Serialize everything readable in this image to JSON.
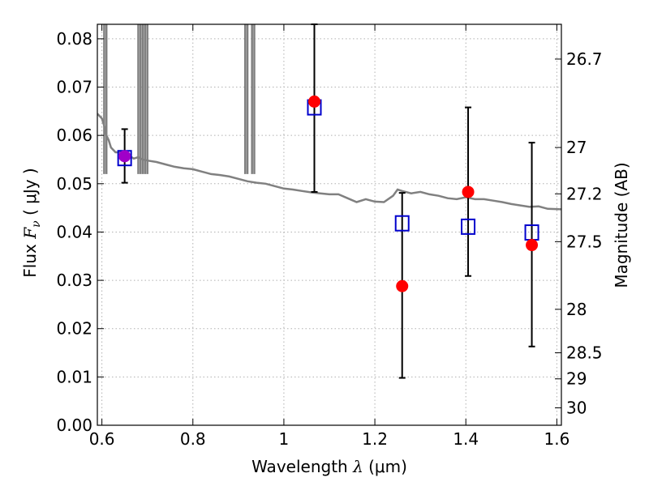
{
  "chart_data": {
    "type": "scatter",
    "xlabel": {
      "prefix": "Wavelength  ",
      "symbol": "λ",
      "suffix": " (μm)"
    },
    "ylabel": {
      "prefix": "Flux  ",
      "symbol": "F",
      "subscript": "ν",
      "suffix": "  ( μJy )"
    },
    "y2label": "Magnitude (AB)",
    "xlim": [
      0.59,
      1.61
    ],
    "ylim": [
      0.0,
      0.083
    ],
    "grid": true,
    "x_ticks": [
      {
        "value": 0.6,
        "label": "0.6"
      },
      {
        "value": 0.8,
        "label": "0.8"
      },
      {
        "value": 1.0,
        "label": "1"
      },
      {
        "value": 1.2,
        "label": "1.2"
      },
      {
        "value": 1.4,
        "label": "1.4"
      },
      {
        "value": 1.6,
        "label": "1.6"
      }
    ],
    "y_ticks": [
      {
        "value": 0.0,
        "label": "0.00"
      },
      {
        "value": 0.01,
        "label": "0.01"
      },
      {
        "value": 0.02,
        "label": "0.02"
      },
      {
        "value": 0.03,
        "label": "0.03"
      },
      {
        "value": 0.04,
        "label": "0.04"
      },
      {
        "value": 0.05,
        "label": "0.05"
      },
      {
        "value": 0.06,
        "label": "0.06"
      },
      {
        "value": 0.07,
        "label": "0.07"
      },
      {
        "value": 0.08,
        "label": "0.08"
      }
    ],
    "y2_ticks": [
      {
        "flux": 0.0758,
        "label": "26.7"
      },
      {
        "flux": 0.0575,
        "label": "27"
      },
      {
        "flux": 0.0479,
        "label": "27.2"
      },
      {
        "flux": 0.038,
        "label": "27.5"
      },
      {
        "flux": 0.024,
        "label": "28"
      },
      {
        "flux": 0.015,
        "label": "28.5"
      },
      {
        "flux": 0.0096,
        "label": "29"
      },
      {
        "flux": 0.0036,
        "label": "30"
      }
    ],
    "colors": {
      "observed": "#ff0000",
      "model_points": "#0000cc",
      "errorbar": "#000000",
      "sed": "#808080",
      "grid": "#b0b0b0"
    },
    "observed_points": [
      {
        "x": 0.65,
        "y": 0.0557,
        "yerr_low": 0.0502,
        "yerr_high": 0.0613
      },
      {
        "x": 1.067,
        "y": 0.067,
        "yerr_low": 0.0483,
        "yerr_high": 0.083
      },
      {
        "x": 1.26,
        "y": 0.0288,
        "yerr_low": 0.0098,
        "yerr_high": 0.0481
      },
      {
        "x": 1.405,
        "y": 0.0483,
        "yerr_low": 0.0309,
        "yerr_high": 0.0658
      },
      {
        "x": 1.545,
        "y": 0.0373,
        "yerr_low": 0.0163,
        "yerr_high": 0.0585
      }
    ],
    "model_points": [
      {
        "x": 0.65,
        "y": 0.0553
      },
      {
        "x": 1.067,
        "y": 0.0658
      },
      {
        "x": 1.26,
        "y": 0.0418
      },
      {
        "x": 1.405,
        "y": 0.0411
      },
      {
        "x": 1.545,
        "y": 0.0399
      }
    ],
    "sed_curve": [
      [
        0.59,
        0.0645
      ],
      [
        0.6,
        0.0635
      ],
      [
        0.605,
        0.062
      ],
      [
        0.61,
        0.06
      ],
      [
        0.615,
        0.059
      ],
      [
        0.62,
        0.0575
      ],
      [
        0.63,
        0.0565
      ],
      [
        0.64,
        0.0565
      ],
      [
        0.65,
        0.0562
      ],
      [
        0.66,
        0.0558
      ],
      [
        0.67,
        0.0552
      ],
      [
        0.68,
        0.0555
      ],
      [
        0.69,
        0.055
      ],
      [
        0.7,
        0.0548
      ],
      [
        0.72,
        0.0545
      ],
      [
        0.74,
        0.054
      ],
      [
        0.76,
        0.0535
      ],
      [
        0.78,
        0.0532
      ],
      [
        0.8,
        0.053
      ],
      [
        0.82,
        0.0525
      ],
      [
        0.84,
        0.052
      ],
      [
        0.86,
        0.0518
      ],
      [
        0.88,
        0.0515
      ],
      [
        0.9,
        0.051
      ],
      [
        0.92,
        0.0505
      ],
      [
        0.94,
        0.0502
      ],
      [
        0.96,
        0.05
      ],
      [
        0.98,
        0.0495
      ],
      [
        1.0,
        0.049
      ],
      [
        1.02,
        0.0488
      ],
      [
        1.04,
        0.0485
      ],
      [
        1.06,
        0.0482
      ],
      [
        1.08,
        0.048
      ],
      [
        1.1,
        0.0478
      ],
      [
        1.12,
        0.0478
      ],
      [
        1.14,
        0.047
      ],
      [
        1.16,
        0.0462
      ],
      [
        1.18,
        0.0468
      ],
      [
        1.2,
        0.0463
      ],
      [
        1.22,
        0.0462
      ],
      [
        1.24,
        0.0475
      ],
      [
        1.25,
        0.0488
      ],
      [
        1.26,
        0.0485
      ],
      [
        1.28,
        0.048
      ],
      [
        1.3,
        0.0483
      ],
      [
        1.32,
        0.0478
      ],
      [
        1.34,
        0.0475
      ],
      [
        1.36,
        0.047
      ],
      [
        1.38,
        0.0468
      ],
      [
        1.4,
        0.0472
      ],
      [
        1.42,
        0.0468
      ],
      [
        1.44,
        0.0468
      ],
      [
        1.46,
        0.0465
      ],
      [
        1.48,
        0.0462
      ],
      [
        1.5,
        0.0458
      ],
      [
        1.52,
        0.0455
      ],
      [
        1.54,
        0.0452
      ],
      [
        1.56,
        0.0453
      ],
      [
        1.58,
        0.0448
      ],
      [
        1.61,
        0.0447
      ]
    ],
    "sed_spikes": [
      0.605,
      0.61,
      0.68,
      0.685,
      0.69,
      0.695,
      0.7,
      0.915,
      0.92,
      0.93,
      0.935
    ]
  }
}
